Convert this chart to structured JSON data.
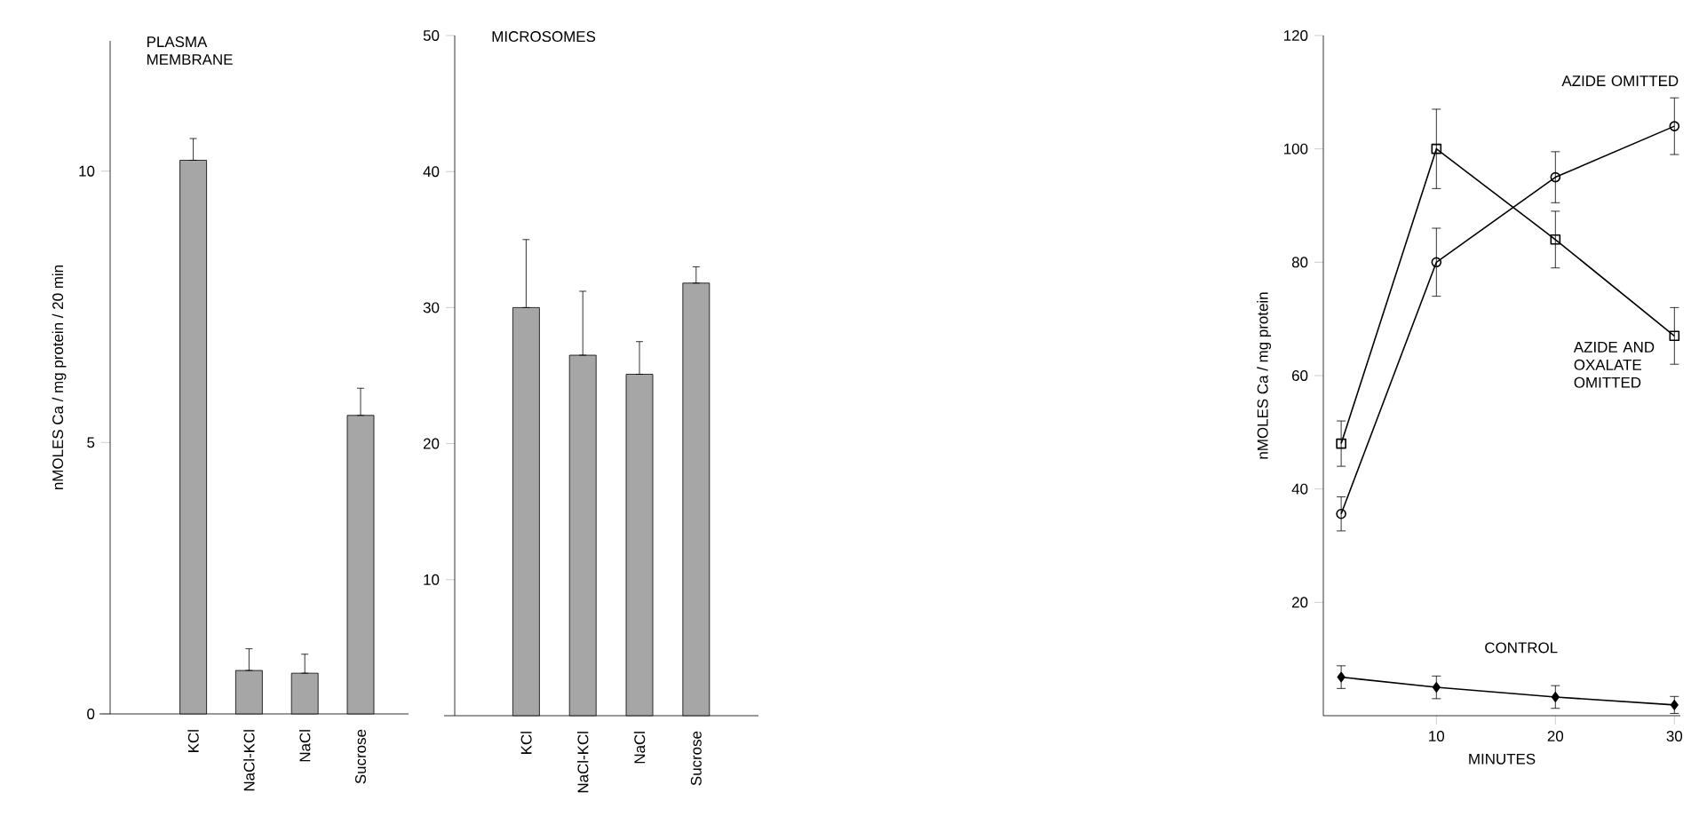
{
  "chart_data": [
    {
      "type": "bar",
      "title": "PLASMA MEMBRANE",
      "ylabel": "nMOLES Ca / mg protein / 20 min",
      "categories": [
        "KCl",
        "NaCl-KCl",
        "NaCl",
        "Sucrose"
      ],
      "series": [
        {
          "color": "#a6a6a6",
          "values": [
            10.2,
            0.8,
            0.75,
            5.5
          ],
          "errors": [
            [
              10.2,
              10.6
            ],
            [
              0.8,
              1.2
            ],
            [
              0.75,
              1.1
            ],
            [
              5.5,
              6.0
            ]
          ]
        }
      ],
      "ylim": [
        0,
        12.4
      ],
      "yticks": [
        0,
        5,
        10
      ],
      "grid": false
    },
    {
      "type": "bar",
      "title": "MICROSOMES",
      "categories": [
        "KCl",
        "NaCl-KCl",
        "NaCl",
        "Sucrose"
      ],
      "series": [
        {
          "color": "#a6a6a6",
          "values": [
            30,
            26.5,
            25.1,
            31.8
          ],
          "errors": [
            [
              30,
              35
            ],
            [
              26.5,
              31.2
            ],
            [
              25.1,
              27.5
            ],
            [
              31.8,
              33
            ]
          ]
        }
      ],
      "ylim": [
        0,
        50
      ],
      "yticks": [
        10,
        20,
        30,
        40,
        50
      ],
      "grid": false
    },
    {
      "type": "line",
      "xlabel": "MINUTES",
      "ylabel": "nMOLES Ca / mg protein",
      "x": [
        2,
        10,
        20,
        30
      ],
      "series": [
        {
          "name": "AZIDE OMITTED",
          "color": "#000000",
          "marker": "circle",
          "values": [
            35.6,
            80,
            95,
            104
          ],
          "errors": [
            3,
            6,
            4.5,
            5
          ]
        },
        {
          "name": "AZIDE AND OXALATE OMITTED",
          "color": "#000000",
          "marker": "square",
          "values": [
            48,
            100,
            84,
            67
          ],
          "errors": [
            4,
            7,
            5,
            5
          ]
        },
        {
          "name": "CONTROL",
          "color": "#000000",
          "marker": "diamond",
          "values": [
            6.8,
            5,
            3.3,
            1.9
          ],
          "errors": [
            2,
            2,
            2,
            1.5
          ]
        }
      ],
      "xlim": [
        0.5,
        30.5
      ],
      "xticks": [
        10,
        20,
        30
      ],
      "ylim": [
        0,
        120
      ],
      "yticks": [
        20,
        40,
        60,
        80,
        100,
        120
      ],
      "grid": false
    }
  ]
}
